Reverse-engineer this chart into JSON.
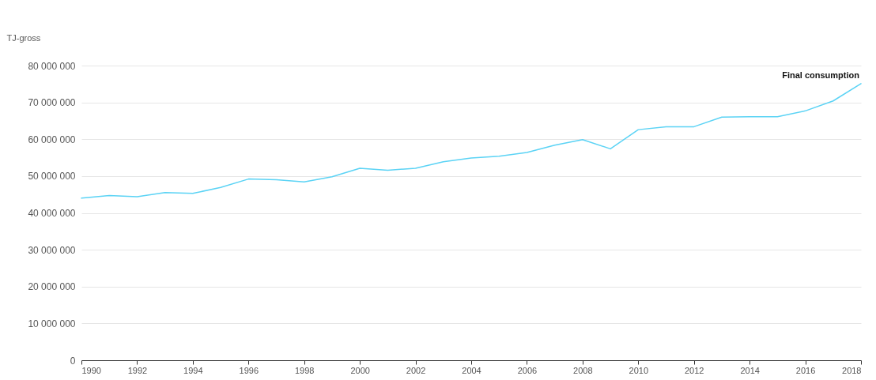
{
  "chart_data": {
    "type": "line",
    "ylabel": "TJ-gross",
    "x": [
      1990,
      1991,
      1992,
      1993,
      1994,
      1995,
      1996,
      1997,
      1998,
      1999,
      2000,
      2001,
      2002,
      2003,
      2004,
      2005,
      2006,
      2007,
      2008,
      2009,
      2010,
      2011,
      2012,
      2013,
      2014,
      2015,
      2016,
      2017,
      2018
    ],
    "series": [
      {
        "name": "Final consumption",
        "color": "#5bd3f5",
        "values": [
          44000000,
          44700000,
          44400000,
          45500000,
          45300000,
          46900000,
          49200000,
          49000000,
          48400000,
          49800000,
          52100000,
          51600000,
          52100000,
          53900000,
          54900000,
          55400000,
          56400000,
          58400000,
          59900000,
          57400000,
          62600000,
          63400000,
          63400000,
          66000000,
          66100000,
          66100000,
          67700000,
          70400000,
          75100000
        ]
      }
    ],
    "xlim": [
      1990,
      2018
    ],
    "xticks": [
      1990,
      1992,
      1994,
      1996,
      1998,
      2000,
      2002,
      2004,
      2006,
      2008,
      2010,
      2012,
      2014,
      2016,
      2018
    ],
    "ylim": [
      0,
      80000000
    ],
    "yticks": [
      0,
      {
        "value": 10000000,
        "label": "10 000 000"
      },
      {
        "value": 20000000,
        "label": "20 000 000"
      },
      {
        "value": 30000000,
        "label": "30 000 000"
      },
      {
        "value": 40000000,
        "label": "40 000 000"
      },
      {
        "value": 50000000,
        "label": "50 000 000"
      },
      {
        "value": 60000000,
        "label": "60 000 000"
      },
      {
        "value": 70000000,
        "label": "70 000 000"
      },
      {
        "value": 80000000,
        "label": "80 000 000"
      }
    ],
    "grid": "y",
    "legend": false,
    "marker": "none",
    "line_style": "solid"
  }
}
